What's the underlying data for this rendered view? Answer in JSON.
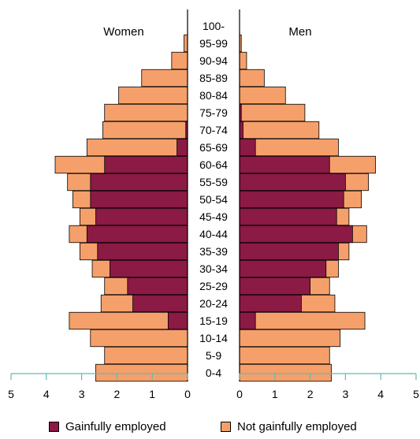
{
  "chart_data": {
    "type": "bar",
    "orientation": "horizontal-population-pyramid",
    "categories": [
      "0-4",
      "5-9",
      "10-14",
      "15-19",
      "20-24",
      "25-29",
      "30-34",
      "35-39",
      "40-44",
      "45-49",
      "50-54",
      "55-59",
      "60-64",
      "65-69",
      "70-74",
      "75-79",
      "80-84",
      "85-89",
      "90-94",
      "95-99",
      "100-"
    ],
    "groups": {
      "women": {
        "label": "Women",
        "gainfully_employed": [
          0,
          0,
          0,
          0.55,
          1.55,
          1.7,
          2.2,
          2.55,
          2.85,
          2.6,
          2.75,
          2.75,
          2.35,
          0.3,
          0.05,
          0,
          0,
          0,
          0,
          0,
          0
        ],
        "total": [
          2.6,
          2.35,
          2.75,
          3.35,
          2.45,
          2.35,
          2.7,
          3.05,
          3.35,
          3.05,
          3.25,
          3.4,
          3.75,
          2.85,
          2.4,
          2.35,
          1.95,
          1.3,
          0.45,
          0.1,
          0
        ]
      },
      "men": {
        "label": "Men",
        "gainfully_employed": [
          0,
          0,
          0,
          0.45,
          1.75,
          2.0,
          2.45,
          2.8,
          3.2,
          2.75,
          2.95,
          3.0,
          2.55,
          0.45,
          0.1,
          0.05,
          0,
          0,
          0,
          0,
          0
        ],
        "total": [
          2.6,
          2.55,
          2.85,
          3.55,
          2.7,
          2.55,
          2.8,
          3.1,
          3.6,
          3.1,
          3.45,
          3.65,
          3.85,
          2.8,
          2.25,
          1.85,
          1.3,
          0.7,
          0.2,
          0.05,
          0
        ]
      }
    },
    "x_ticks": [
      "5",
      "4",
      "3",
      "2",
      "1",
      "0",
      "0",
      "1",
      "2",
      "3",
      "4",
      "5"
    ],
    "xlim": [
      0,
      5
    ],
    "legend": {
      "placement": "bottom",
      "items": [
        {
          "label": "Gainfully employed",
          "color": "#8b1a45"
        },
        {
          "label": "Not gainfully employed",
          "color": "#f5a06b"
        }
      ]
    },
    "colors": {
      "employed": "#8b1a45",
      "not_employed": "#f5a06b",
      "axis": "#5bbcb8"
    }
  }
}
